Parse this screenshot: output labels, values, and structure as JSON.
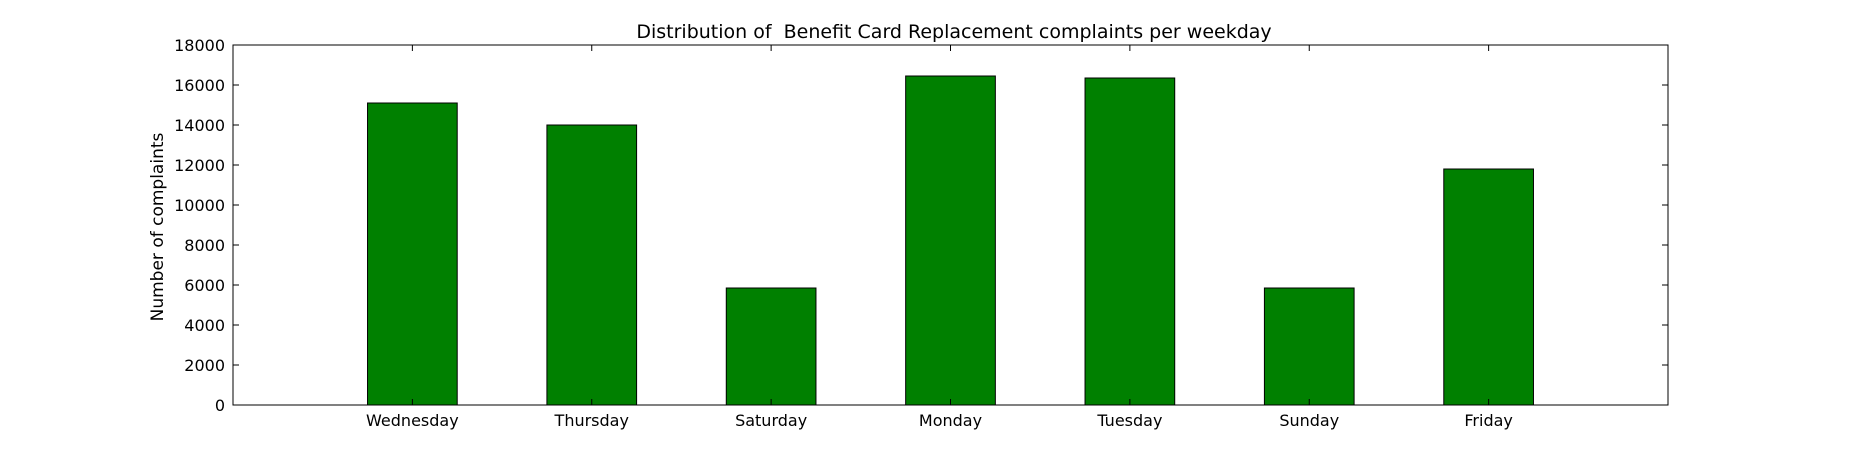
{
  "chart_data": {
    "type": "bar",
    "title": "Distribution of  Benefit Card Replacement complaints per weekday",
    "xlabel": "",
    "ylabel": "Number of complaints",
    "categories": [
      "Wednesday",
      "Thursday",
      "Saturday",
      "Monday",
      "Tuesday",
      "Sunday",
      "Friday"
    ],
    "values": [
      15100,
      14000,
      5850,
      16450,
      16350,
      5850,
      11800
    ],
    "ylim": [
      0,
      18000
    ],
    "yticks": [
      0,
      2000,
      4000,
      6000,
      8000,
      10000,
      12000,
      14000,
      16000,
      18000
    ],
    "grid": false,
    "legend": "none",
    "bar_color": "#008000",
    "edge_color": "#000000"
  }
}
